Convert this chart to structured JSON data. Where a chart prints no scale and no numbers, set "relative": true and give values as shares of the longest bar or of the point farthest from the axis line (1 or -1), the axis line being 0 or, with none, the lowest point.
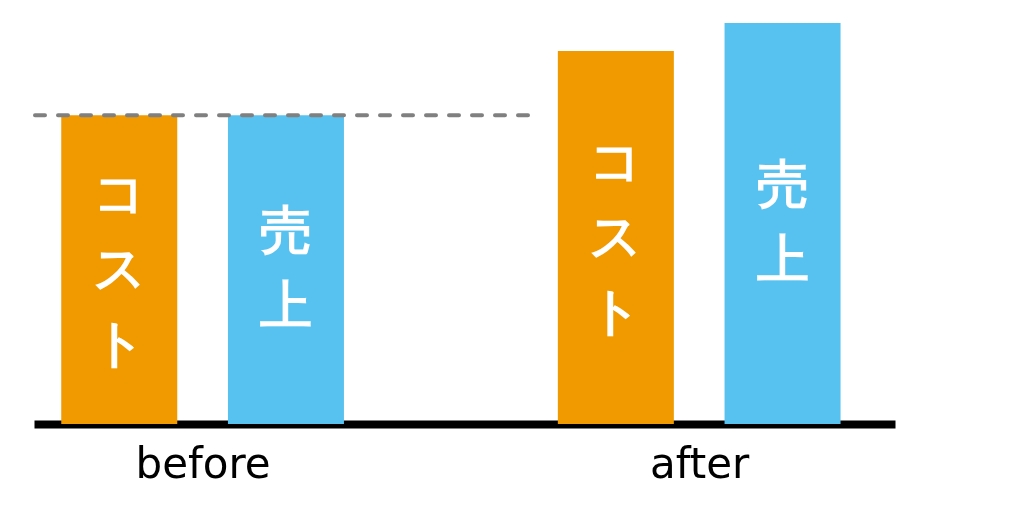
{
  "chart_data": {
    "type": "bar",
    "relative": true,
    "categories": [
      "before",
      "after"
    ],
    "series": [
      {
        "name": "コスト",
        "color": "#f09a00",
        "values": [
          0.77,
          0.93
        ]
      },
      {
        "name": "売上",
        "color": "#57c2f0",
        "values": [
          0.77,
          1
        ]
      }
    ],
    "ref_lines": [
      {
        "axis": "y",
        "value": 0.77,
        "color": "#808080",
        "line_style": "dashed"
      }
    ]
  }
}
